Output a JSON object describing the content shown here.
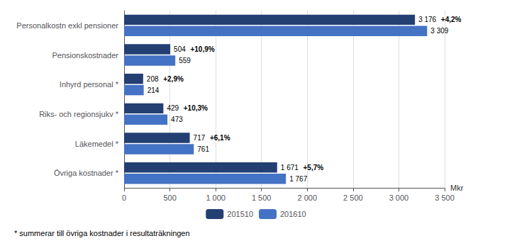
{
  "chart_data": {
    "type": "bar",
    "orientation": "horizontal",
    "categories": [
      "Personalkostn exkl pensioner",
      "Pensionskostnader",
      "Inhyrd personal *",
      "Riks- och regionsjukv *",
      "Läkemedel *",
      "Övriga kostnader *"
    ],
    "series": [
      {
        "name": "201510",
        "color": "#243f72",
        "values": [
          3176,
          504,
          208,
          429,
          717,
          1671
        ],
        "value_labels": [
          "3 176",
          "504",
          "208",
          "429",
          "717",
          "1 671"
        ]
      },
      {
        "name": "201610",
        "color": "#4472c4",
        "values": [
          3309,
          559,
          214,
          473,
          761,
          1767
        ],
        "value_labels": [
          "3 309",
          "559",
          "214",
          "473",
          "761",
          "1 767"
        ]
      }
    ],
    "xlabel": "Mkr",
    "xlim": [
      0,
      3500
    ],
    "xticks": [
      0,
      500,
      {
        "value": 1000,
        "label": "1 000"
      },
      {
        "value": 1500,
        "label": "1 500"
      },
      {
        "value": 2000,
        "label": "2 000"
      },
      {
        "value": 2500,
        "label": "2 500"
      },
      {
        "value": 3000,
        "label": "3 000"
      },
      {
        "value": 3500,
        "label": "3 500"
      }
    ],
    "grid": true,
    "legend": "bottom",
    "data_labels": true,
    "annotations": [
      {
        "category": "Personalkostn exkl pensioner",
        "series": "201510",
        "text": "+4,2%"
      },
      {
        "category": "Pensionskostnader",
        "series": "201510",
        "text": "+10,9%"
      },
      {
        "category": "Inhyrd personal *",
        "series": "201510",
        "text": "+2,9%"
      },
      {
        "category": "Riks- och regionsjukv *",
        "series": "201510",
        "text": "+10,3%"
      },
      {
        "category": "Läkemedel *",
        "series": "201510",
        "text": "+6,1%"
      },
      {
        "category": "Övriga kostnader *",
        "series": "201510",
        "text": "+5,7%"
      },
      {
        "text": "* summerar till övriga kostnader i resultaträkningen"
      }
    ]
  }
}
